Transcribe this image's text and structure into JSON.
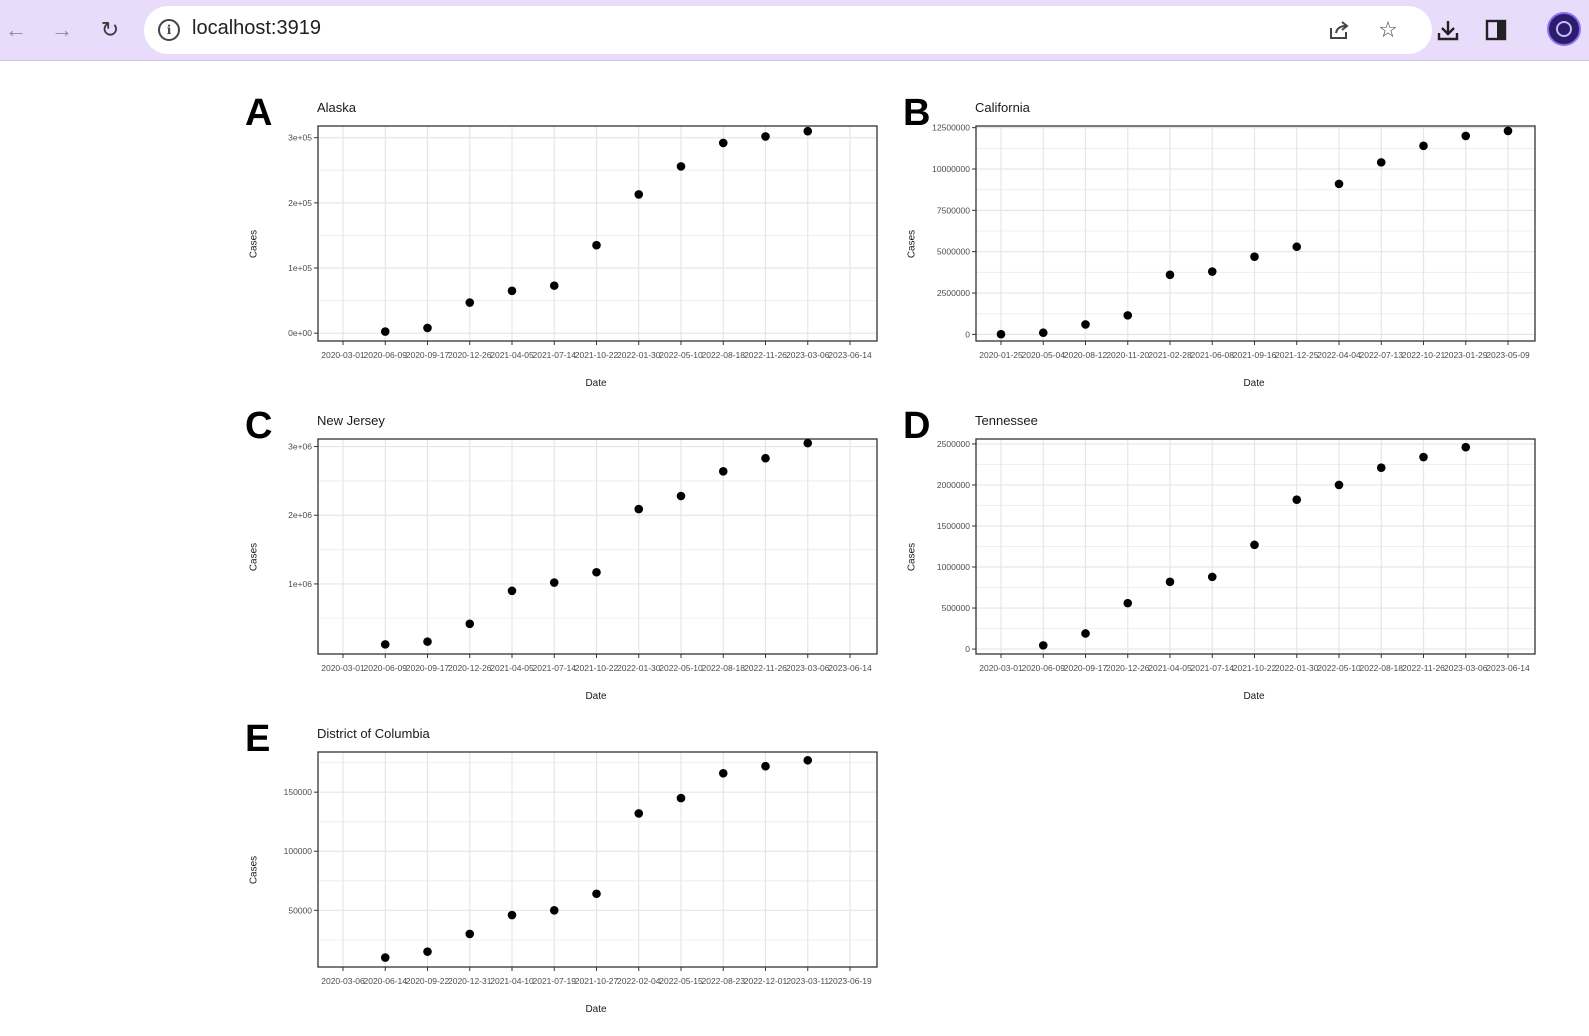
{
  "browser": {
    "url": "localhost:3919",
    "icons": {
      "back": "back-arrow-icon",
      "forward": "forward-arrow-icon",
      "reload": "reload-icon",
      "info": "info-icon",
      "share": "share-icon",
      "bookmark": "star-icon",
      "download": "download-icon",
      "sidepanel": "side-panel-icon",
      "profile": "profile-avatar-icon"
    },
    "colors": {
      "frame": "#e9dcfb",
      "omnibox": "#ffffff"
    }
  },
  "chart_data": [
    {
      "type": "scatter",
      "panel": "A",
      "title": "Alaska",
      "xlabel": "Date",
      "ylabel": "Cases",
      "x_ticks": [
        "2020-03-01",
        "2020-06-09",
        "2020-09-17",
        "2020-12-26",
        "2021-04-05",
        "2021-07-14",
        "2021-10-22",
        "2022-01-30",
        "2022-05-10",
        "2022-08-18",
        "2022-11-26",
        "2023-03-06",
        "2023-06-14"
      ],
      "y_ticks": [
        0,
        100000,
        200000,
        300000
      ],
      "y_tick_labels": [
        "0e+00",
        "1e+05",
        "2e+05",
        "3e+05"
      ],
      "ylim": [
        -12000,
        318000
      ],
      "x": [
        "2020-06-09",
        "2020-09-17",
        "2020-12-26",
        "2021-04-05",
        "2021-07-14",
        "2021-10-22",
        "2022-01-30",
        "2022-05-10",
        "2022-08-18",
        "2022-11-26",
        "2023-03-06"
      ],
      "y": [
        2500,
        8000,
        47000,
        65000,
        73000,
        135000,
        213000,
        256000,
        292000,
        302000,
        310000
      ],
      "grid": true,
      "point_color": "#000000"
    },
    {
      "type": "scatter",
      "panel": "B",
      "title": "California",
      "xlabel": "Date",
      "ylabel": "Cases",
      "x_ticks": [
        "2020-01-25",
        "2020-05-04",
        "2020-08-12",
        "2020-11-20",
        "2021-02-28",
        "2021-06-08",
        "2021-09-16",
        "2021-12-25",
        "2022-04-04",
        "2022-07-13",
        "2022-10-21",
        "2023-01-29",
        "2023-05-09"
      ],
      "y_ticks": [
        0,
        2500000,
        5000000,
        7500000,
        10000000,
        12500000
      ],
      "y_tick_labels": [
        "0",
        "2500000",
        "5000000",
        "7500000",
        "10000000",
        "12500000"
      ],
      "ylim": [
        -400000,
        12600000
      ],
      "x": [
        "2020-01-25",
        "2020-05-04",
        "2020-08-12",
        "2020-11-20",
        "2021-02-28",
        "2021-06-08",
        "2021-09-16",
        "2021-12-25",
        "2022-04-04",
        "2022-07-13",
        "2022-10-21",
        "2023-01-29",
        "2023-05-09"
      ],
      "y": [
        10000,
        100000,
        600000,
        1150000,
        3600000,
        3800000,
        4700000,
        5300000,
        9100000,
        10400000,
        11400000,
        12000000,
        12300000
      ],
      "grid": true,
      "point_color": "#000000"
    },
    {
      "type": "scatter",
      "panel": "C",
      "title": "New Jersey",
      "xlabel": "Date",
      "ylabel": "Cases",
      "x_ticks": [
        "2020-03-01",
        "2020-06-09",
        "2020-09-17",
        "2020-12-26",
        "2021-04-05",
        "2021-07-14",
        "2021-10-22",
        "2022-01-30",
        "2022-05-10",
        "2022-08-18",
        "2022-11-26",
        "2023-03-06",
        "2023-06-14"
      ],
      "y_ticks": [
        1000000,
        2000000,
        3000000
      ],
      "y_tick_labels": [
        "1e+06",
        "2e+06",
        "3e+06"
      ],
      "ylim": [
        -20000,
        3110000
      ],
      "x": [
        "2020-06-09",
        "2020-09-17",
        "2020-12-26",
        "2021-04-05",
        "2021-07-14",
        "2021-10-22",
        "2022-01-30",
        "2022-05-10",
        "2022-08-18",
        "2022-11-26",
        "2023-03-06"
      ],
      "y": [
        120000,
        160000,
        420000,
        900000,
        1020000,
        1170000,
        2090000,
        2280000,
        2640000,
        2830000,
        3050000
      ],
      "grid": true,
      "point_color": "#000000"
    },
    {
      "type": "scatter",
      "panel": "D",
      "title": "Tennessee",
      "xlabel": "Date",
      "ylabel": "Cases",
      "x_ticks": [
        "2020-03-01",
        "2020-06-09",
        "2020-09-17",
        "2020-12-26",
        "2021-04-05",
        "2021-07-14",
        "2021-10-22",
        "2022-01-30",
        "2022-05-10",
        "2022-08-18",
        "2022-11-26",
        "2023-03-06",
        "2023-06-14"
      ],
      "y_ticks": [
        0,
        500000,
        1000000,
        1500000,
        2000000,
        2500000
      ],
      "y_tick_labels": [
        "0",
        "500000",
        "1000000",
        "1500000",
        "2000000",
        "2500000"
      ],
      "ylim": [
        -60000,
        2560000
      ],
      "x": [
        "2020-06-09",
        "2020-09-17",
        "2020-12-26",
        "2021-04-05",
        "2021-07-14",
        "2021-10-22",
        "2022-01-30",
        "2022-05-10",
        "2022-08-18",
        "2022-11-26",
        "2023-03-06"
      ],
      "y": [
        45000,
        190000,
        560000,
        820000,
        880000,
        1270000,
        1820000,
        2000000,
        2210000,
        2340000,
        2460000
      ],
      "grid": true,
      "point_color": "#000000"
    },
    {
      "type": "scatter",
      "panel": "E",
      "title": "District of Columbia",
      "xlabel": "Date",
      "ylabel": "Cases",
      "x_ticks": [
        "2020-03-06",
        "2020-06-14",
        "2020-09-22",
        "2020-12-31",
        "2021-04-10",
        "2021-07-19",
        "2021-10-27",
        "2022-02-04",
        "2022-05-15",
        "2022-08-23",
        "2022-12-01",
        "2023-03-11",
        "2023-06-19"
      ],
      "y_ticks": [
        50000,
        100000,
        150000
      ],
      "y_tick_labels": [
        "50000",
        "100000",
        "150000"
      ],
      "ylim": [
        2000,
        184000
      ],
      "x": [
        "2020-06-14",
        "2020-09-22",
        "2020-12-31",
        "2021-04-10",
        "2021-07-19",
        "2021-10-27",
        "2022-02-04",
        "2022-05-15",
        "2022-08-23",
        "2022-12-01",
        "2023-03-11"
      ],
      "y": [
        10000,
        15000,
        30000,
        46000,
        50000,
        64000,
        132000,
        145000,
        166000,
        172000,
        177000
      ],
      "grid": true,
      "point_color": "#000000"
    }
  ]
}
